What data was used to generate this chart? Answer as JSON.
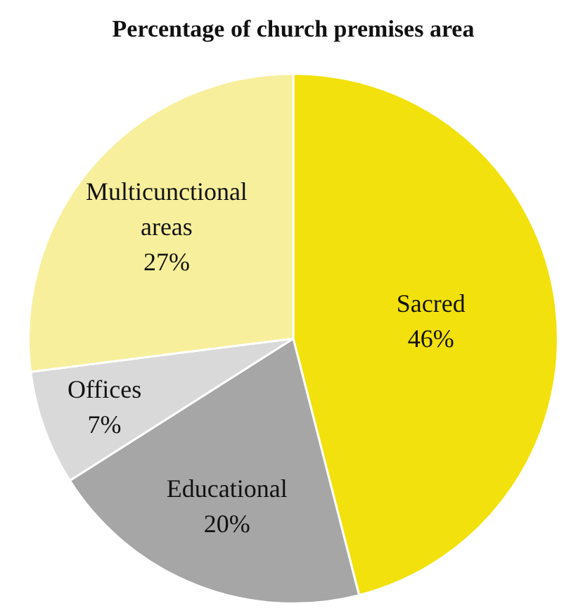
{
  "chart_data": {
    "type": "pie",
    "title": "Percentage of church premises area",
    "categories": [
      "Sacred",
      "Educational",
      "Offices",
      "Multicunctional areas"
    ],
    "values": [
      46,
      20,
      7,
      27
    ],
    "colors": [
      "#f2e10c",
      "#a6a6a6",
      "#d9d9d9",
      "#f7ef9b"
    ],
    "value_labels": [
      "46%",
      "20%",
      "7%",
      "27%"
    ]
  }
}
